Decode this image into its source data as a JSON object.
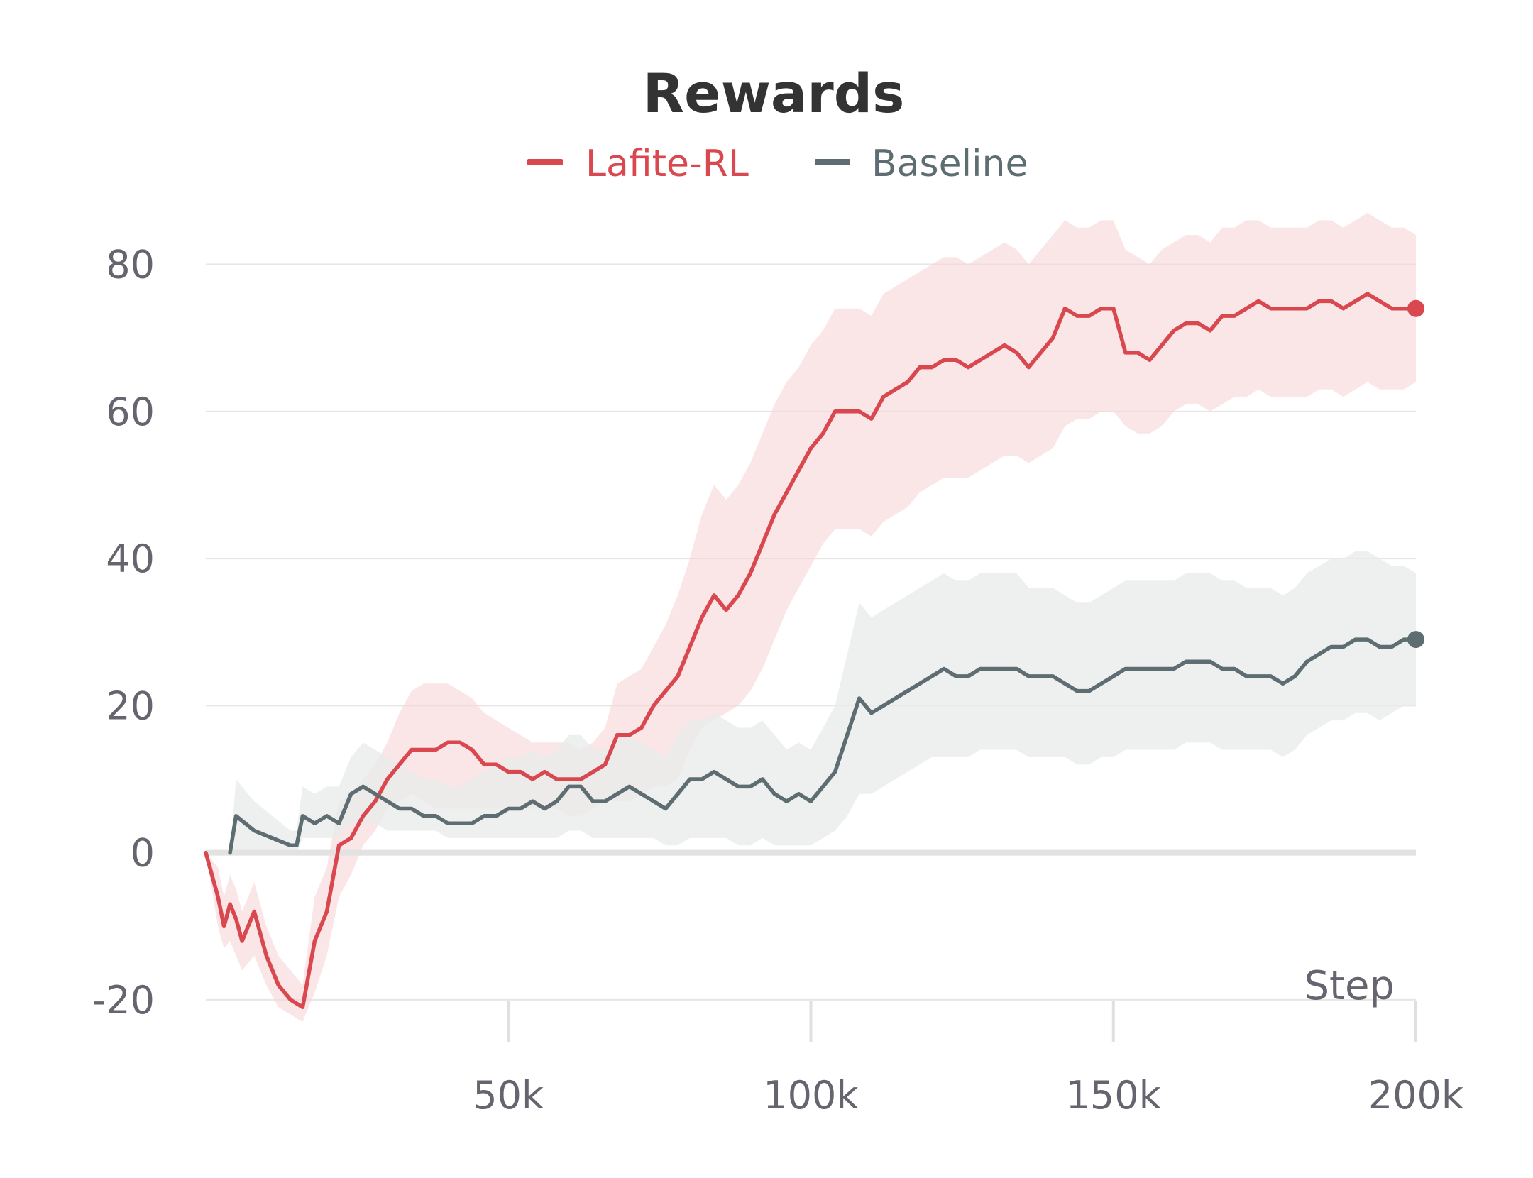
{
  "chart_data": {
    "type": "line",
    "title": "Rewards",
    "xlabel": "Step",
    "ylabel": "",
    "xlim": [
      0,
      200000
    ],
    "ylim": [
      -23,
      87
    ],
    "x_ticks": [
      50000,
      100000,
      150000,
      200000
    ],
    "x_tick_labels": [
      "50k",
      "100k",
      "150k",
      "200k"
    ],
    "y_ticks": [
      -20,
      0,
      20,
      40,
      60,
      80
    ],
    "y_tick_labels": [
      "-20",
      "0",
      "20",
      "40",
      "60",
      "80"
    ],
    "grid": true,
    "legend_position": "top-center",
    "series": [
      {
        "name": "Lafite-RL",
        "color": "#d9474f",
        "band_color": "#f7d5d7",
        "x": [
          0,
          2000,
          3000,
          4000,
          5000,
          6000,
          8000,
          10000,
          12000,
          14000,
          16000,
          18000,
          20000,
          22000,
          24000,
          26000,
          28000,
          30000,
          32000,
          34000,
          36000,
          38000,
          40000,
          42000,
          44000,
          46000,
          48000,
          50000,
          52000,
          54000,
          56000,
          58000,
          60000,
          62000,
          64000,
          66000,
          68000,
          70000,
          72000,
          74000,
          76000,
          78000,
          80000,
          82000,
          84000,
          86000,
          88000,
          90000,
          92000,
          94000,
          96000,
          98000,
          100000,
          102000,
          104000,
          106000,
          108000,
          110000,
          112000,
          114000,
          116000,
          118000,
          120000,
          122000,
          124000,
          126000,
          128000,
          130000,
          132000,
          134000,
          136000,
          138000,
          140000,
          142000,
          144000,
          146000,
          148000,
          150000,
          152000,
          154000,
          156000,
          158000,
          160000,
          162000,
          164000,
          166000,
          168000,
          170000,
          172000,
          174000,
          176000,
          178000,
          180000,
          182000,
          184000,
          186000,
          188000,
          190000,
          192000,
          194000,
          196000,
          198000,
          200000
        ],
        "y": [
          0,
          -6,
          -10,
          -7,
          -9,
          -12,
          -8,
          -14,
          -18,
          -20,
          -21,
          -12,
          -8,
          1,
          2,
          5,
          7,
          10,
          12,
          14,
          14,
          14,
          15,
          15,
          14,
          12,
          12,
          11,
          11,
          10,
          11,
          10,
          10,
          10,
          11,
          12,
          16,
          16,
          17,
          20,
          22,
          24,
          28,
          32,
          35,
          33,
          35,
          38,
          42,
          46,
          49,
          52,
          55,
          57,
          60,
          60,
          60,
          59,
          62,
          63,
          64,
          66,
          66,
          67,
          67,
          66,
          67,
          68,
          69,
          68,
          66,
          68,
          70,
          74,
          73,
          73,
          74,
          74,
          68,
          68,
          67,
          69,
          71,
          72,
          72,
          71,
          73,
          73,
          74,
          75,
          74,
          74,
          74,
          74,
          75,
          75,
          74,
          75,
          76,
          75,
          74,
          74,
          74
        ],
        "lower": [
          0,
          -10,
          -13,
          -12,
          -14,
          -16,
          -14,
          -18,
          -21,
          -22,
          -23,
          -19,
          -14,
          -6,
          -3,
          1,
          3,
          6,
          7,
          8,
          7,
          6,
          6,
          6,
          6,
          6,
          6,
          6,
          6,
          6,
          6,
          6,
          5,
          5,
          6,
          7,
          7,
          7,
          8,
          9,
          9,
          10,
          14,
          17,
          18,
          19,
          20,
          22,
          25,
          29,
          33,
          36,
          39,
          42,
          44,
          44,
          44,
          43,
          45,
          46,
          47,
          49,
          50,
          51,
          51,
          51,
          52,
          53,
          54,
          54,
          53,
          54,
          55,
          58,
          59,
          59,
          60,
          60,
          58,
          57,
          57,
          58,
          60,
          61,
          61,
          60,
          61,
          62,
          62,
          63,
          62,
          62,
          62,
          62,
          63,
          63,
          62,
          63,
          64,
          63,
          63,
          63,
          64
        ],
        "upper": [
          0,
          -2,
          -6,
          -3,
          -5,
          -8,
          -4,
          -10,
          -14,
          -16,
          -18,
          -6,
          -2,
          7,
          8,
          10,
          12,
          15,
          19,
          22,
          23,
          23,
          23,
          22,
          21,
          19,
          18,
          17,
          16,
          15,
          15,
          15,
          15,
          14,
          15,
          17,
          23,
          24,
          25,
          28,
          31,
          35,
          40,
          46,
          50,
          48,
          50,
          53,
          57,
          61,
          64,
          66,
          69,
          71,
          74,
          74,
          74,
          73,
          76,
          77,
          78,
          79,
          80,
          81,
          81,
          80,
          81,
          82,
          83,
          82,
          80,
          82,
          84,
          86,
          85,
          85,
          86,
          86,
          82,
          81,
          80,
          82,
          83,
          84,
          84,
          83,
          85,
          85,
          86,
          86,
          85,
          85,
          85,
          85,
          86,
          86,
          85,
          86,
          87,
          86,
          85,
          85,
          84
        ]
      },
      {
        "name": "Baseline",
        "color": "#5e6d72",
        "band_color": "#e8ebeb",
        "x": [
          4000,
          5000,
          8000,
          11000,
          14000,
          15000,
          16000,
          18000,
          20000,
          22000,
          24000,
          26000,
          28000,
          30000,
          32000,
          34000,
          36000,
          38000,
          40000,
          42000,
          44000,
          46000,
          48000,
          50000,
          52000,
          54000,
          56000,
          58000,
          60000,
          62000,
          64000,
          66000,
          68000,
          70000,
          72000,
          74000,
          76000,
          78000,
          80000,
          82000,
          84000,
          86000,
          88000,
          90000,
          92000,
          94000,
          96000,
          98000,
          100000,
          102000,
          104000,
          106000,
          108000,
          110000,
          112000,
          114000,
          116000,
          118000,
          120000,
          122000,
          124000,
          126000,
          128000,
          130000,
          132000,
          134000,
          136000,
          138000,
          140000,
          142000,
          144000,
          146000,
          148000,
          150000,
          152000,
          154000,
          156000,
          158000,
          160000,
          162000,
          164000,
          166000,
          168000,
          170000,
          172000,
          174000,
          176000,
          178000,
          180000,
          182000,
          184000,
          186000,
          188000,
          190000,
          192000,
          194000,
          196000,
          198000,
          200000
        ],
        "y": [
          0,
          5,
          3,
          2,
          1,
          1,
          5,
          4,
          5,
          4,
          8,
          9,
          8,
          7,
          6,
          6,
          5,
          5,
          4,
          4,
          4,
          5,
          5,
          6,
          6,
          7,
          6,
          7,
          9,
          9,
          7,
          7,
          8,
          9,
          8,
          7,
          6,
          8,
          10,
          10,
          11,
          10,
          9,
          9,
          10,
          8,
          7,
          8,
          7,
          9,
          11,
          16,
          21,
          19,
          20,
          21,
          22,
          23,
          24,
          25,
          24,
          24,
          25,
          25,
          25,
          25,
          24,
          24,
          24,
          23,
          22,
          22,
          23,
          24,
          25,
          25,
          25,
          25,
          25,
          26,
          26,
          26,
          25,
          25,
          24,
          24,
          24,
          23,
          24,
          26,
          27,
          28,
          28,
          29,
          29,
          28,
          28,
          29,
          29
        ],
        "lower": [
          0,
          0,
          0,
          0,
          0,
          0,
          2,
          2,
          2,
          2,
          4,
          4,
          4,
          3,
          3,
          3,
          3,
          3,
          2,
          2,
          2,
          2,
          2,
          2,
          2,
          2,
          2,
          2,
          3,
          3,
          2,
          2,
          2,
          2,
          2,
          2,
          1,
          1,
          2,
          2,
          2,
          2,
          1,
          1,
          2,
          1,
          1,
          1,
          1,
          2,
          3,
          5,
          8,
          8,
          9,
          10,
          11,
          12,
          13,
          13,
          13,
          13,
          14,
          14,
          14,
          14,
          13,
          13,
          13,
          13,
          12,
          12,
          13,
          13,
          14,
          14,
          14,
          14,
          14,
          15,
          15,
          15,
          14,
          14,
          14,
          14,
          14,
          13,
          14,
          16,
          17,
          18,
          18,
          19,
          19,
          18,
          19,
          20,
          20
        ],
        "upper": [
          0,
          10,
          7,
          5,
          3,
          3,
          9,
          8,
          9,
          9,
          13,
          15,
          14,
          13,
          12,
          11,
          10,
          10,
          9,
          9,
          10,
          11,
          12,
          13,
          13,
          14,
          13,
          14,
          16,
          16,
          14,
          14,
          15,
          16,
          15,
          14,
          13,
          16,
          18,
          18,
          19,
          18,
          17,
          17,
          18,
          16,
          14,
          15,
          14,
          17,
          20,
          27,
          34,
          32,
          33,
          34,
          35,
          36,
          37,
          38,
          37,
          37,
          38,
          38,
          38,
          38,
          36,
          36,
          36,
          35,
          34,
          34,
          35,
          36,
          37,
          37,
          37,
          37,
          37,
          38,
          38,
          38,
          37,
          37,
          36,
          36,
          36,
          35,
          36,
          38,
          39,
          40,
          40,
          41,
          41,
          40,
          39,
          39,
          38
        ]
      }
    ]
  }
}
